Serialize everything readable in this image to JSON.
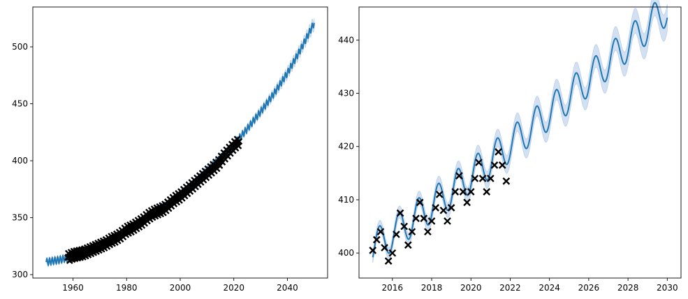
{
  "chart_data": [
    {
      "type": "line",
      "title": "",
      "xlabel": "",
      "ylabel": "",
      "xlim": [
        1945,
        2055
      ],
      "ylim": [
        297,
        535
      ],
      "xticks": [
        1960,
        1980,
        2000,
        2020,
        2040
      ],
      "yticks": [
        300,
        350,
        400,
        450,
        500
      ],
      "xtick_labels": [
        "1960",
        "1980",
        "2000",
        "2020",
        "2040"
      ],
      "ytick_labels": [
        "300",
        "350",
        "400",
        "450",
        "500"
      ],
      "grid": false,
      "legend": "none",
      "series": [
        {
          "kind": "line-with-band",
          "color": "#1f77b4",
          "band_color": "#aec7e8",
          "x": [
            1950,
            1955,
            1960,
            1965,
            1970,
            1975,
            1980,
            1985,
            1990,
            1995,
            2000,
            2005,
            2010,
            2015,
            2020,
            2025,
            2030,
            2035,
            2040,
            2045,
            2050
          ],
          "y": [
            311,
            313,
            316,
            319,
            325,
            331,
            338,
            346,
            354,
            361,
            370,
            380,
            391,
            402,
            414,
            428,
            443,
            459,
            477,
            498,
            521
          ],
          "seasonal_amplitude": 3,
          "band_halfwidth": [
            1,
            1,
            1,
            1,
            1,
            1,
            1,
            1,
            1,
            1,
            1,
            1,
            1,
            1,
            1,
            1.5,
            2,
            2.5,
            3,
            3.5,
            4
          ]
        },
        {
          "kind": "scatter",
          "marker": "x",
          "color": "#000000",
          "x": [
            1958,
            1960,
            1962,
            1964,
            1966,
            1968,
            1970,
            1972,
            1974,
            1976,
            1978,
            1980,
            1982,
            1984,
            1986,
            1988,
            1990,
            1992,
            1994,
            1996,
            1998,
            2000,
            2002,
            2004,
            2006,
            2008,
            2010,
            2012,
            2014,
            2016,
            2018,
            2020,
            2022
          ],
          "y": [
            315,
            317,
            318,
            319,
            321,
            323,
            325,
            327,
            330,
            332,
            335,
            339,
            341,
            344,
            347,
            351,
            354,
            356,
            358,
            362,
            366,
            369,
            373,
            377,
            381,
            385,
            389,
            393,
            397,
            403,
            408,
            413,
            417
          ],
          "seasonal_amplitude": 3.5
        }
      ]
    },
    {
      "type": "line",
      "title": "",
      "xlabel": "",
      "ylabel": "",
      "xlim": [
        2014.3,
        2030.7
      ],
      "ylim": [
        395.3,
        446.2
      ],
      "xticks": [
        2016,
        2018,
        2020,
        2022,
        2024,
        2026,
        2028,
        2030
      ],
      "yticks": [
        400,
        410,
        420,
        430,
        440
      ],
      "xtick_labels": [
        "2016",
        "2018",
        "2020",
        "2022",
        "2024",
        "2026",
        "2028",
        "2030"
      ],
      "ytick_labels": [
        "400",
        "410",
        "420",
        "430",
        "440"
      ],
      "grid": false,
      "legend": "none",
      "series": [
        {
          "kind": "line-with-band",
          "color": "#1f77b4",
          "band_color": "#aec7e8",
          "trend": {
            "x0": 2015,
            "y0": 401,
            "slope": 2.55
          },
          "seasonal_amplitude": 3.2,
          "x_range": [
            2015,
            2030
          ],
          "band_halfwidth": [
            1.0,
            2.5
          ]
        },
        {
          "kind": "scatter",
          "marker": "x",
          "color": "#000000",
          "x": [
            2015.0,
            2015.2,
            2015.4,
            2015.6,
            2015.8,
            2016.0,
            2016.2,
            2016.4,
            2016.6,
            2016.8,
            2017.0,
            2017.2,
            2017.4,
            2017.6,
            2017.8,
            2018.0,
            2018.2,
            2018.4,
            2018.6,
            2018.8,
            2019.0,
            2019.2,
            2019.4,
            2019.6,
            2019.8,
            2020.0,
            2020.2,
            2020.4,
            2020.6,
            2020.8,
            2021.0,
            2021.2,
            2021.4,
            2021.6,
            2021.8
          ],
          "y": [
            400.5,
            402.5,
            404.0,
            401.0,
            398.5,
            400.0,
            403.5,
            407.5,
            405.0,
            401.5,
            404.0,
            406.5,
            409.5,
            406.5,
            404.0,
            406.0,
            408.5,
            411.0,
            408.0,
            406.0,
            408.5,
            411.5,
            414.5,
            411.5,
            409.5,
            411.5,
            414.0,
            417.0,
            414.0,
            411.5,
            414.0,
            416.5,
            419.0,
            416.5,
            413.5
          ]
        }
      ]
    }
  ]
}
